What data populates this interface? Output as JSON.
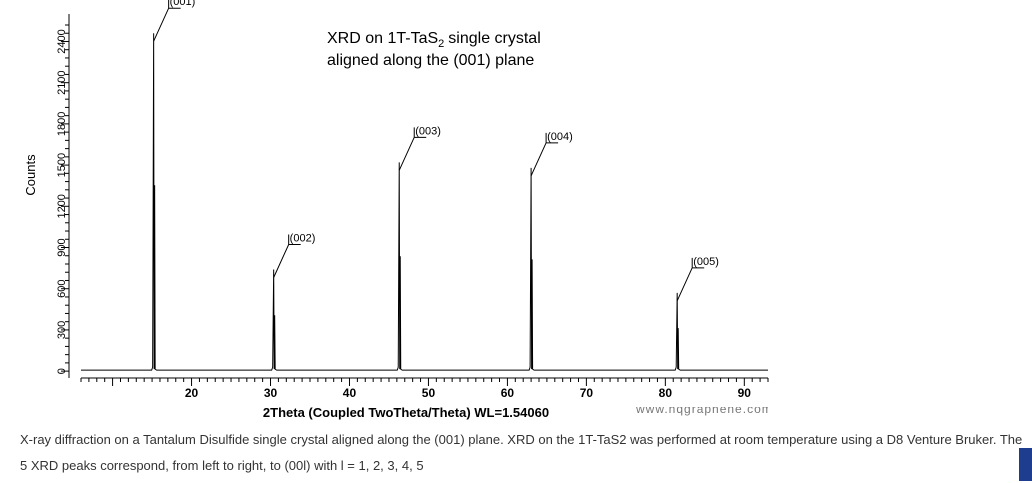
{
  "chart_data": {
    "type": "line",
    "title": "XRD on 1T-TaS₂ single crystal aligned along the (001) plane",
    "title_lines": [
      "XRD on 1T-TaS",
      "single crystal",
      "aligned along the (001) plane"
    ],
    "title_subscript": "2",
    "xlabel": "2Theta (Coupled TwoTheta/Theta) WL=1.54060",
    "ylabel": "Counts",
    "xlim": [
      6,
      93
    ],
    "ylim": [
      -50,
      2600
    ],
    "x_ticks": [
      20,
      30,
      40,
      50,
      60,
      70,
      80,
      90
    ],
    "y_ticks": [
      0,
      300,
      600,
      900,
      1200,
      1500,
      1800,
      2100,
      2400
    ],
    "grid": false,
    "legend": "none",
    "line_color": "#000000",
    "series": [
      {
        "peaks": [
          {
            "x": 15.2,
            "y": 2460,
            "label": "(001)"
          },
          {
            "x": 30.4,
            "y": 740,
            "label": "(002)"
          },
          {
            "x": 46.3,
            "y": 1520,
            "label": "(003)"
          },
          {
            "x": 63.0,
            "y": 1480,
            "label": "(004)"
          },
          {
            "x": 81.5,
            "y": 570,
            "label": "(005)"
          }
        ]
      }
    ]
  },
  "caption": {
    "text": "X-ray diffraction on a Tantalum Disulfide single crystal aligned along the (001) plane. XRD on the 1T-TaS2 was performed at room temperature using a D8 Venture Bruker. The 5 XRD peaks correspond, from left to right, to (00l) with l = 1, 2, 3, 4, 5"
  },
  "watermark": {
    "text": "www.hqgraphene.com"
  }
}
